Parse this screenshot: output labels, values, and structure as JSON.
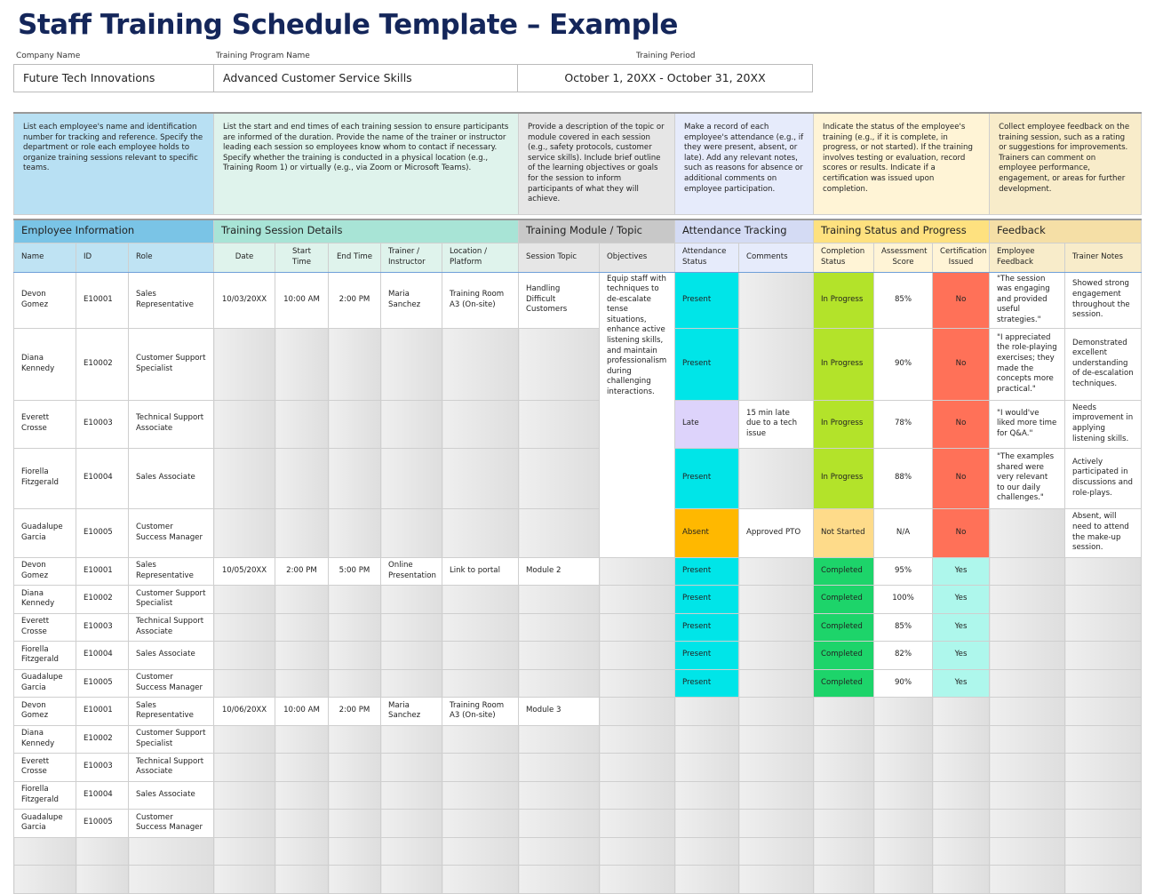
{
  "title": "Staff Training Schedule Template – Example",
  "info": {
    "company_label": "Company Name",
    "company": "Future Tech Innovations",
    "program_label": "Training Program Name",
    "program": "Advanced Customer Service Skills",
    "period_label": "Training Period",
    "period": "October 1, 20XX - October 31, 20XX"
  },
  "colors": {
    "present": "#00e5e8",
    "late": "#ddd3fb",
    "absent": "#ffb800",
    "in_progress": "#b3e32a",
    "not_started": "#fedb8a",
    "completed": "#1dd46a",
    "no": "#ff7158",
    "yes": "#aef7ec"
  },
  "groups": [
    {
      "label": "Employee Information",
      "span": 3,
      "color": "#7ac4e6",
      "sub": "#bfe3f3",
      "desc_color": "#b8e0f3",
      "desc": "List each employee's name and identification number for tracking and reference. Specify the department or role each employee holds to organize training sessions relevant to specific teams."
    },
    {
      "label": "Training Session Details",
      "span": 5,
      "color": "#a8e4d6",
      "sub": "#dff3ec",
      "desc_color": "#dff3ec",
      "desc": "List the start and end times of each training session to ensure participants are informed of the duration. Provide the name of the trainer or instructor leading each session so employees know whom to contact if necessary. Specify whether the training is conducted in a physical location (e.g., Training Room 1) or virtually (e.g., via Zoom or Microsoft Teams)."
    },
    {
      "label": "Training Module / Topic",
      "span": 2,
      "color": "#c8c8c8",
      "sub": "#e6e6e6",
      "desc_color": "#e6e6e6",
      "desc": "Provide a description of the topic or module covered in each session (e.g., safety protocols, customer service skills). Include brief outline of the learning objectives or goals for the session to inform participants of what they will achieve."
    },
    {
      "label": "Attendance Tracking",
      "span": 2,
      "color": "#d4dbf4",
      "sub": "#e6ebfb",
      "desc_color": "#e6ebfb",
      "desc": "Make a record of each employee's attendance (e.g., if they were present, absent, or late). Add any relevant notes, such as reasons for absence or additional comments on employee participation."
    },
    {
      "label": "Training Status and Progress",
      "span": 3,
      "color": "#fee17f",
      "sub": "#fff4d6",
      "desc_color": "#fff4d6",
      "desc": "Indicate the status of the employee's training (e.g., if it is complete, in progress, or not started). If the training involves testing or evaluation, record scores or results. Indicate if a certification was issued upon completion."
    },
    {
      "label": "Feedback",
      "span": 2,
      "color": "#f5dfa6",
      "sub": "#f8ecca",
      "desc_color": "#f8ecca",
      "desc": "Collect employee feedback on the training session, such as a rating or suggestions for improvements. Trainers can comment on employee performance, engagement, or areas for further development."
    }
  ],
  "columns": [
    "Name",
    "ID",
    "Role",
    "Date",
    "Start Time",
    "End Time",
    "Trainer / Instructor",
    "Location / Platform",
    "Session Topic",
    "Objectives",
    "Attendance Status",
    "Comments",
    "Completion Status",
    "Assessment Score",
    "Certification Issued",
    "Employee Feedback",
    "Trainer Notes"
  ],
  "sessions": [
    {
      "objectives": "Equip staff with techniques to de-escalate tense situations, enhance active listening skills, and maintain professionalism during challenging interactions.",
      "rows": [
        [
          "Devon Gomez",
          "E10001",
          "Sales Representative",
          "10/03/20XX",
          "10:00 AM",
          "2:00 PM",
          "Maria Sanchez",
          "Training Room A3 (On-site)",
          "Handling Difficult Customers",
          "Present",
          "",
          "In Progress",
          "85%",
          "No",
          "\"The session was engaging and provided useful strategies.\"",
          "Showed strong engagement throughout the session."
        ],
        [
          "Diana Kennedy",
          "E10002",
          "Customer Support Specialist",
          "",
          "",
          "",
          "",
          "",
          "",
          "Present",
          "",
          "In Progress",
          "90%",
          "No",
          "\"I appreciated the role-playing exercises; they made the concepts more practical.\"",
          "Demonstrated excellent understanding of de-escalation techniques."
        ],
        [
          "Everett Crosse",
          "E10003",
          "Technical Support Associate",
          "",
          "",
          "",
          "",
          "",
          "",
          "Late",
          "15 min late due to a tech issue",
          "In Progress",
          "78%",
          "No",
          "\"I would've liked more time for Q&A.\"",
          "Needs improvement in applying listening skills."
        ],
        [
          "Fiorella Fitzgerald",
          "E10004",
          "Sales Associate",
          "",
          "",
          "",
          "",
          "",
          "",
          "Present",
          "",
          "In Progress",
          "88%",
          "No",
          "\"The examples shared were very relevant to our daily challenges.\"",
          "Actively participated in discussions and role-plays."
        ],
        [
          "Guadalupe Garcia",
          "E10005",
          "Customer Success Manager",
          "",
          "",
          "",
          "",
          "",
          "",
          "Absent",
          "Approved PTO",
          "Not Started",
          "N/A",
          "No",
          "",
          "Absent, will need to attend the make-up session."
        ]
      ]
    },
    {
      "objectives": "",
      "rows": [
        [
          "Devon Gomez",
          "E10001",
          "Sales Representative",
          "10/05/20XX",
          "2:00 PM",
          "5:00 PM",
          "Online Presentation",
          "Link to portal",
          "Module 2",
          "Present",
          "",
          "Completed",
          "95%",
          "Yes",
          "",
          ""
        ],
        [
          "Diana Kennedy",
          "E10002",
          "Customer Support Specialist",
          "",
          "",
          "",
          "",
          "",
          "",
          "Present",
          "",
          "Completed",
          "100%",
          "Yes",
          "",
          ""
        ],
        [
          "Everett Crosse",
          "E10003",
          "Technical Support Associate",
          "",
          "",
          "",
          "",
          "",
          "",
          "Present",
          "",
          "Completed",
          "85%",
          "Yes",
          "",
          ""
        ],
        [
          "Fiorella Fitzgerald",
          "E10004",
          "Sales Associate",
          "",
          "",
          "",
          "",
          "",
          "",
          "Present",
          "",
          "Completed",
          "82%",
          "Yes",
          "",
          ""
        ],
        [
          "Guadalupe Garcia",
          "E10005",
          "Customer Success Manager",
          "",
          "",
          "",
          "",
          "",
          "",
          "Present",
          "",
          "Completed",
          "90%",
          "Yes",
          "",
          ""
        ]
      ]
    },
    {
      "objectives": "",
      "rows": [
        [
          "Devon Gomez",
          "E10001",
          "Sales Representative",
          "10/06/20XX",
          "10:00 AM",
          "2:00 PM",
          "Maria Sanchez",
          "Training Room A3 (On-site)",
          "Module 3",
          "",
          "",
          "",
          "",
          "",
          "",
          ""
        ],
        [
          "Diana Kennedy",
          "E10002",
          "Customer Support Specialist",
          "",
          "",
          "",
          "",
          "",
          "",
          "",
          "",
          "",
          "",
          "",
          "",
          ""
        ],
        [
          "Everett Crosse",
          "E10003",
          "Technical Support Associate",
          "",
          "",
          "",
          "",
          "",
          "",
          "",
          "",
          "",
          "",
          "",
          "",
          ""
        ],
        [
          "Fiorella Fitzgerald",
          "E10004",
          "Sales Associate",
          "",
          "",
          "",
          "",
          "",
          "",
          "",
          "",
          "",
          "",
          "",
          "",
          ""
        ],
        [
          "Guadalupe Garcia",
          "E10005",
          "Customer Success Manager",
          "",
          "",
          "",
          "",
          "",
          "",
          "",
          "",
          "",
          "",
          "",
          "",
          ""
        ]
      ]
    }
  ]
}
